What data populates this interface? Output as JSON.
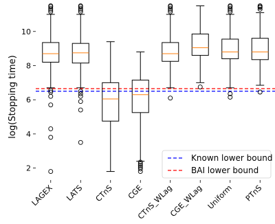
{
  "chart_data": {
    "type": "box",
    "ylabel": "log(Stopping time)",
    "xlabel": "",
    "ylim": [
      1.3,
      11.6
    ],
    "yticks": [
      2,
      4,
      6,
      8,
      10
    ],
    "grid": false,
    "legend_position": "bottom-right",
    "categories": [
      "LAGEX",
      "LATS",
      "CTnS",
      "CGE",
      "CTnS_WLag",
      "CGE_WLag",
      "Uniform",
      "PTnS"
    ],
    "boxes": [
      {
        "whisker_low": 6.7,
        "q1": 8.2,
        "median": 8.7,
        "q3": 9.35,
        "whisker_high": 11.0,
        "outliers": [
          1.8,
          3.8,
          4.3,
          5.7,
          6.2,
          6.45,
          6.55,
          11.15,
          11.25,
          11.35,
          11.45,
          11.5
        ]
      },
      {
        "whisker_low": 6.7,
        "q1": 8.15,
        "median": 8.75,
        "q3": 9.3,
        "whisker_high": 11.0,
        "outliers": [
          3.5,
          5.4,
          5.9,
          6.2,
          6.35,
          6.5,
          11.15,
          11.25,
          11.35,
          11.45,
          11.5
        ]
      },
      {
        "whisker_low": 1.8,
        "q1": 4.75,
        "median": 6.05,
        "q3": 7.0,
        "whisker_high": 9.4,
        "outliers": []
      },
      {
        "whisker_low": 2.4,
        "q1": 5.25,
        "median": 6.3,
        "q3": 7.15,
        "whisker_high": 8.8,
        "outliers": [
          1.8,
          1.95,
          2.05,
          2.15,
          2.25,
          2.35
        ]
      },
      {
        "whisker_low": 6.7,
        "q1": 8.25,
        "median": 8.7,
        "q3": 9.35,
        "whisker_high": 11.0,
        "outliers": [
          6.1,
          11.15,
          11.25,
          11.35,
          11.45,
          11.5
        ]
      },
      {
        "whisker_low": 7.0,
        "q1": 8.6,
        "median": 9.05,
        "q3": 9.85,
        "whisker_high": 11.5,
        "outliers": [
          6.75
        ]
      },
      {
        "whisker_low": 6.7,
        "q1": 8.4,
        "median": 8.8,
        "q3": 9.55,
        "whisker_high": 11.0,
        "outliers": [
          6.15,
          6.35,
          11.15,
          11.25,
          11.35,
          11.45,
          11.5
        ]
      },
      {
        "whisker_low": 6.85,
        "q1": 8.35,
        "median": 8.8,
        "q3": 9.6,
        "whisker_high": 11.1,
        "outliers": [
          6.45,
          11.3,
          11.4,
          11.45,
          11.5
        ]
      }
    ],
    "reference_lines": [
      {
        "name": "Known lower bound",
        "y": 6.5,
        "color": "#0000ff",
        "style": "dashed"
      },
      {
        "name": "BAI lower bound",
        "y": 6.65,
        "color": "#ff0000",
        "style": "dashed"
      }
    ],
    "colors": {
      "box": "#000000",
      "median": "#ff7f0e"
    }
  }
}
